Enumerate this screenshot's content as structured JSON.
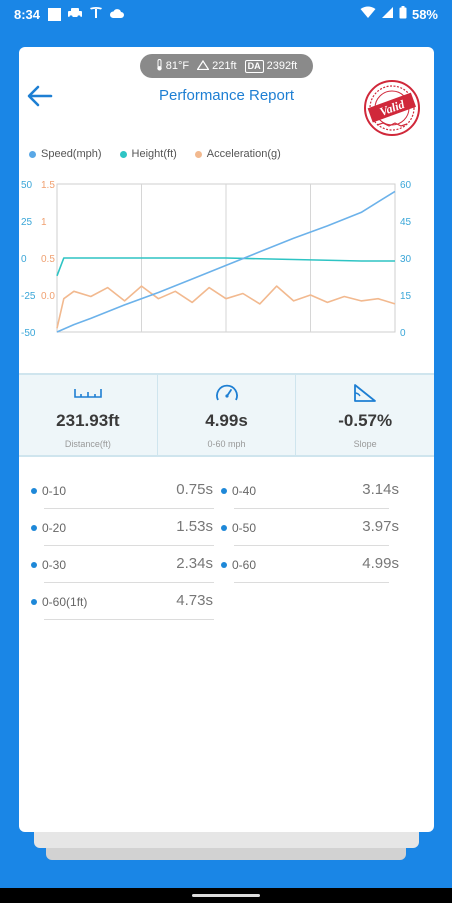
{
  "status_bar": {
    "time": "8:34",
    "battery": "58%"
  },
  "conditions": {
    "temperature": "81°F",
    "elevation": "221ft",
    "da_badge": "DA",
    "density_altitude": "2392ft"
  },
  "header": {
    "title": "Performance Report",
    "stamp_text": "Valid"
  },
  "legend": [
    {
      "label": "Speed(mph)",
      "color": "#5aa8e6"
    },
    {
      "label": "Height(ft)",
      "color": "#2ec4c4"
    },
    {
      "label": "Acceleration(g)",
      "color": "#f2b98f"
    }
  ],
  "chart_data": {
    "type": "line",
    "axes": {
      "left_outer": {
        "ticks": [
          "50",
          "25",
          "0",
          "-25",
          "-50"
        ],
        "color": "#3aa6d8"
      },
      "left_inner": {
        "ticks": [
          "1.5",
          "1",
          "0.5",
          "0.0"
        ],
        "color": "#f0a070"
      },
      "right": {
        "ticks": [
          "60",
          "45",
          "30",
          "15",
          "0"
        ],
        "color": "#3aa6d8"
      }
    },
    "series": [
      {
        "name": "Speed(mph)",
        "axis": "right",
        "color": "#6cb2ea",
        "x": [
          0,
          0.05,
          0.1,
          0.2,
          0.3,
          0.4,
          0.5,
          0.6,
          0.7,
          0.8,
          0.9,
          1.0
        ],
        "values": [
          0,
          3,
          5.5,
          11,
          16,
          21.5,
          27,
          32.5,
          38,
          43,
          48.5,
          57
        ]
      },
      {
        "name": "Height(ft)",
        "axis": "left_outer",
        "color": "#2ec4c4",
        "x": [
          0,
          0.02,
          0.1,
          0.3,
          0.5,
          0.7,
          0.9,
          1.0
        ],
        "values": [
          -12,
          0,
          0,
          0,
          0,
          -1,
          -2,
          -2
        ]
      },
      {
        "name": "Acceleration(g)",
        "axis": "left_inner",
        "color": "#f2b98f",
        "x": [
          0,
          0.02,
          0.05,
          0.1,
          0.15,
          0.2,
          0.25,
          0.3,
          0.35,
          0.4,
          0.45,
          0.5,
          0.55,
          0.6,
          0.65,
          0.7,
          0.75,
          0.8,
          0.85,
          0.9,
          0.95,
          1.0
        ],
        "values": [
          0.05,
          0.45,
          0.55,
          0.48,
          0.6,
          0.42,
          0.62,
          0.45,
          0.55,
          0.4,
          0.6,
          0.45,
          0.52,
          0.38,
          0.62,
          0.42,
          0.5,
          0.4,
          0.48,
          0.42,
          0.45,
          0.38
        ]
      }
    ],
    "grid": true
  },
  "stats": [
    {
      "value": "231.93ft",
      "label": "Distance(ft)",
      "icon": "ruler-icon"
    },
    {
      "value": "4.99s",
      "label": "0-60 mph",
      "icon": "speedometer-icon"
    },
    {
      "value": "-0.57%",
      "label": "Slope",
      "icon": "slope-icon"
    }
  ],
  "splits": [
    {
      "label": "0-10",
      "value": "0.75s"
    },
    {
      "label": "0-40",
      "value": "3.14s"
    },
    {
      "label": "0-20",
      "value": "1.53s"
    },
    {
      "label": "0-50",
      "value": "3.97s"
    },
    {
      "label": "0-30",
      "value": "2.34s"
    },
    {
      "label": "0-60",
      "value": "4.99s"
    },
    {
      "label": "0-60(1ft)",
      "value": "4.73s"
    }
  ]
}
